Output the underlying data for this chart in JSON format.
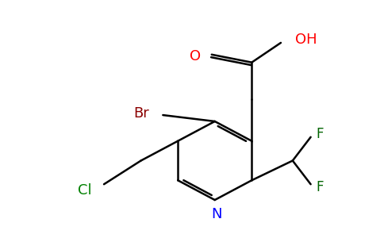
{
  "background_color": "#ffffff",
  "bond_color": "#000000",
  "atom_colors": {
    "O": "#ff0000",
    "N": "#0000ff",
    "Br": "#8b0000",
    "Cl": "#008000",
    "F": "#006400",
    "C": "#000000",
    "H": "#000000"
  },
  "figsize": [
    4.84,
    3.0
  ],
  "dpi": 100
}
